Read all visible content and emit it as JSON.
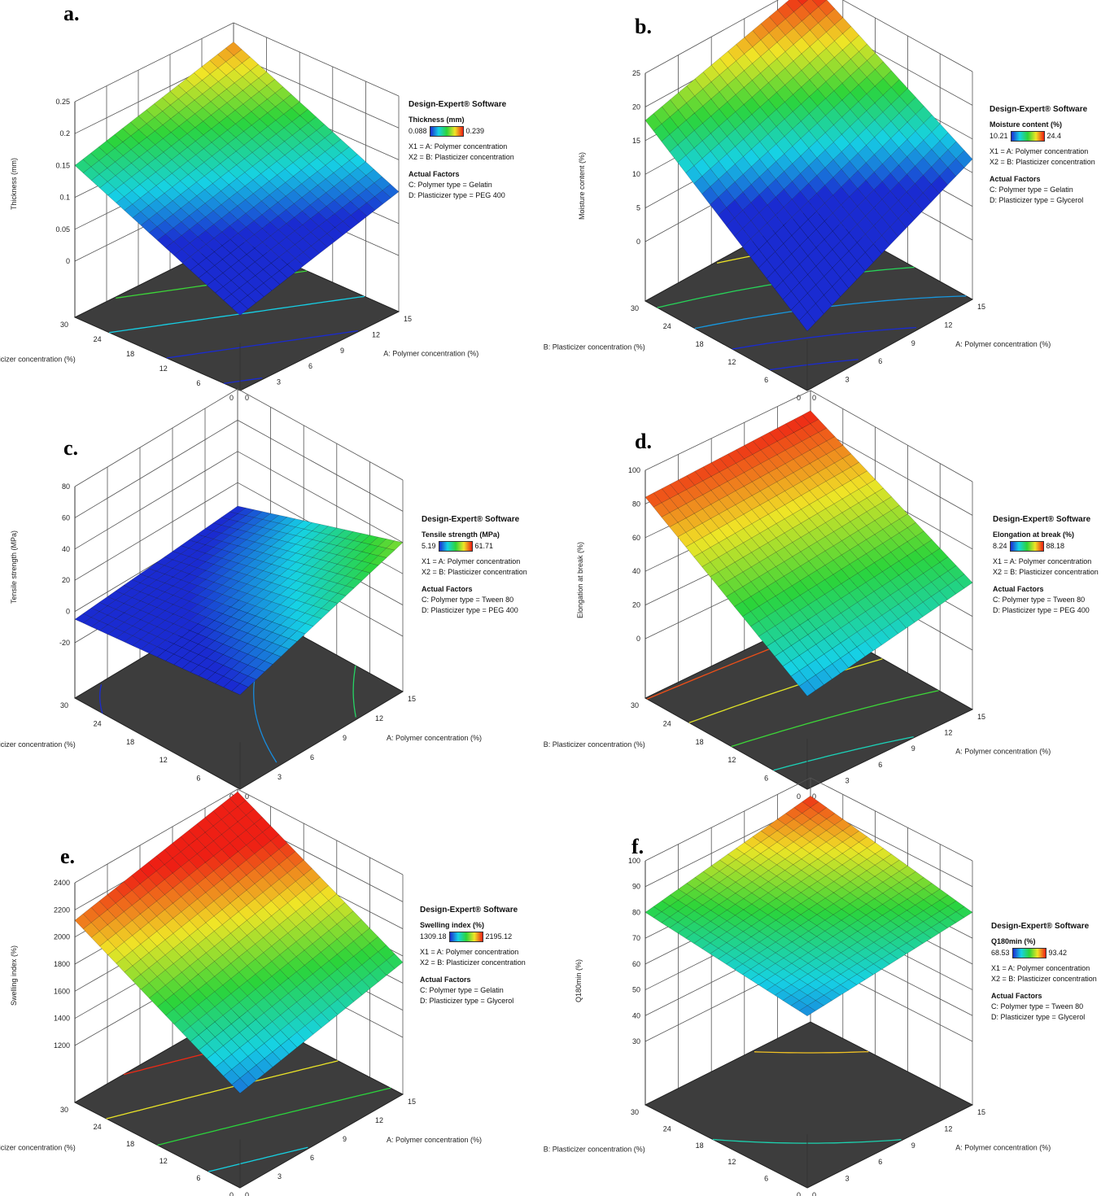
{
  "software_label": "Design-Expert® Software",
  "x1_label": "X1 = A: Polymer concentration",
  "x2_label": "X2 = B: Plasticizer concentration",
  "actual_factors_label": "Actual Factors",
  "x_axis_title": "A: Polymer concentration (%)",
  "y_axis_title": "B: Plasticizer concentration (%)",
  "x_ticks": [
    "0",
    "3",
    "6",
    "9",
    "12",
    "15"
  ],
  "y_ticks": [
    "0",
    "6",
    "12",
    "18",
    "24",
    "30"
  ],
  "panels": [
    {
      "label": "a.",
      "zlabel": "Thickness (mm)",
      "response": "Thickness (mm)",
      "cmin": "0.088",
      "cmax": "0.239",
      "factor_c": "C: Polymer type = Gelatin",
      "factor_d": "D: Plasticizer type = PEG 400",
      "z_ticks": [
        "0",
        "0.05",
        "0.1",
        "0.15",
        "0.2",
        "0.25"
      ]
    },
    {
      "label": "b.",
      "zlabel": "Moisture content (%)",
      "response": "Moisture content (%)",
      "cmin": "10.21",
      "cmax": "24.4",
      "factor_c": "C: Polymer type = Gelatin",
      "factor_d": "D: Plasticizer type = Glycerol",
      "z_ticks": [
        "0",
        "5",
        "10",
        "15",
        "20",
        "25"
      ]
    },
    {
      "label": "c.",
      "zlabel": "Tensile strength (MPa)",
      "response": "Tensile strength (MPa)",
      "cmin": "5.19",
      "cmax": "61.71",
      "factor_c": "C: Polymer type = Tween 80",
      "factor_d": "D: Plasticizer type = PEG 400",
      "z_ticks": [
        "-20",
        "0",
        "20",
        "40",
        "60",
        "80"
      ]
    },
    {
      "label": "d.",
      "zlabel": "Elongation at break (%)",
      "response": "Elongation at break (%)",
      "cmin": "8.24",
      "cmax": "88.18",
      "factor_c": "C: Polymer type = Tween 80",
      "factor_d": "D: Plasticizer type = PEG 400",
      "z_ticks": [
        "0",
        "20",
        "40",
        "60",
        "80",
        "100"
      ]
    },
    {
      "label": "e.",
      "zlabel": "Swelling index (%)",
      "response": "Swelling index (%)",
      "cmin": "1309.18",
      "cmax": "2195.12",
      "factor_c": "C: Polymer type = Gelatin",
      "factor_d": "D: Plasticizer type = Glycerol",
      "z_ticks": [
        "1200",
        "1400",
        "1600",
        "1800",
        "2000",
        "2200",
        "2400"
      ]
    },
    {
      "label": "f.",
      "zlabel": "Q180min (%)",
      "response": "Q180min (%)",
      "cmin": "68.53",
      "cmax": "93.42",
      "factor_c": "C: Polymer type = Tween 80",
      "factor_d": "D: Plasticizer type = Glycerol",
      "z_ticks": [
        "30",
        "40",
        "50",
        "60",
        "70",
        "80",
        "90",
        "100"
      ]
    }
  ],
  "chart_data": [
    {
      "type": "surface",
      "title": "",
      "zlabel": "Thickness (mm)",
      "xlabel": "A: Polymer concentration (%)",
      "ylabel": "B: Plasticizer concentration (%)",
      "xlim": [
        0,
        15
      ],
      "ylim": [
        0,
        30
      ],
      "zlim": [
        0,
        0.25
      ],
      "corners": {
        "A0_B0": 0.03,
        "A15_B0": 0.1,
        "A0_B30": 0.15,
        "A15_B30": 0.22
      }
    },
    {
      "type": "surface",
      "title": "",
      "zlabel": "Moisture content (%)",
      "xlabel": "A: Polymer concentration (%)",
      "ylabel": "B: Plasticizer concentration (%)",
      "xlim": [
        0,
        15
      ],
      "ylim": [
        0,
        30
      ],
      "zlim": [
        0,
        25
      ],
      "corners": {
        "A0_B0": 0,
        "A15_B0": 12,
        "A0_B30": 18,
        "A15_B30": 25
      }
    },
    {
      "type": "surface",
      "title": "",
      "zlabel": "Tensile strength (MPa)",
      "xlabel": "A: Polymer concentration (%)",
      "ylabel": "B: Plasticizer concentration (%)",
      "xlim": [
        0,
        15
      ],
      "ylim": [
        0,
        30
      ],
      "zlim": [
        -20,
        80
      ],
      "corners": {
        "A0_B0": 5,
        "A15_B0": 40,
        "A0_B30": -5,
        "A15_B30": 5
      }
    },
    {
      "type": "surface",
      "title": "",
      "zlabel": "Elongation at break (%)",
      "xlabel": "A: Polymer concentration (%)",
      "ylabel": "B: Plasticizer concentration (%)",
      "xlim": [
        0,
        15
      ],
      "ylim": [
        0,
        30
      ],
      "zlim": [
        0,
        100
      ],
      "corners": {
        "A0_B0": 20,
        "A15_B0": 40,
        "A0_B30": 84,
        "A15_B30": 88
      }
    },
    {
      "type": "surface",
      "title": "",
      "zlabel": "Swelling index (%)",
      "xlabel": "A: Polymer concentration (%)",
      "ylabel": "B: Plasticizer concentration (%)",
      "xlim": [
        0,
        15
      ],
      "ylim": [
        0,
        30
      ],
      "zlim": [
        1100,
        2400
      ],
      "corners": {
        "A0_B0": 1400,
        "A15_B0": 1700,
        "A0_B30": 2100,
        "A15_B30": 2380
      }
    },
    {
      "type": "surface",
      "title": "",
      "zlabel": "Q180min (%)",
      "xlabel": "A: Polymer concentration (%)",
      "ylabel": "B: Plasticizer concentration (%)",
      "xlim": [
        0,
        15
      ],
      "ylim": [
        0,
        30
      ],
      "zlim": [
        30,
        100
      ],
      "corners": {
        "A0_B0": 72,
        "A15_B0": 80,
        "A0_B30": 80,
        "A15_B30": 93
      }
    }
  ]
}
